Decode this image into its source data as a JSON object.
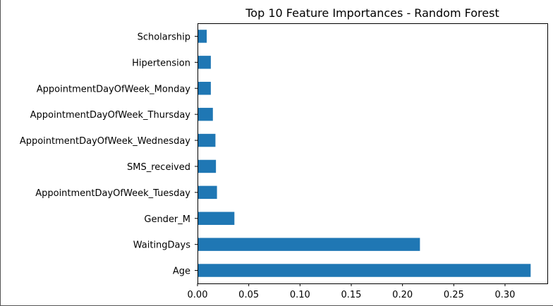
{
  "chart_data": {
    "type": "bar",
    "orientation": "horizontal",
    "title": "Top 10 Feature Importances - Random Forest",
    "xlabel": "",
    "ylabel": "",
    "categories": [
      "Age",
      "WaitingDays",
      "Gender_M",
      "AppointmentDayOfWeek_Tuesday",
      "SMS_received",
      "AppointmentDayOfWeek_Wednesday",
      "AppointmentDayOfWeek_Thursday",
      "AppointmentDayOfWeek_Monday",
      "Hipertension",
      "Scholarship"
    ],
    "values": [
      0.325,
      0.217,
      0.036,
      0.019,
      0.018,
      0.0175,
      0.015,
      0.013,
      0.013,
      0.009
    ],
    "xlim": [
      0.0,
      0.3413
    ],
    "xticks": [
      0.0,
      0.05,
      0.1,
      0.15,
      0.2,
      0.25,
      0.3
    ],
    "xtick_labels": [
      "0.00",
      "0.05",
      "0.10",
      "0.15",
      "0.20",
      "0.25",
      "0.30"
    ],
    "grid": false,
    "legend": "none",
    "bar_color": "#1f77b4"
  }
}
